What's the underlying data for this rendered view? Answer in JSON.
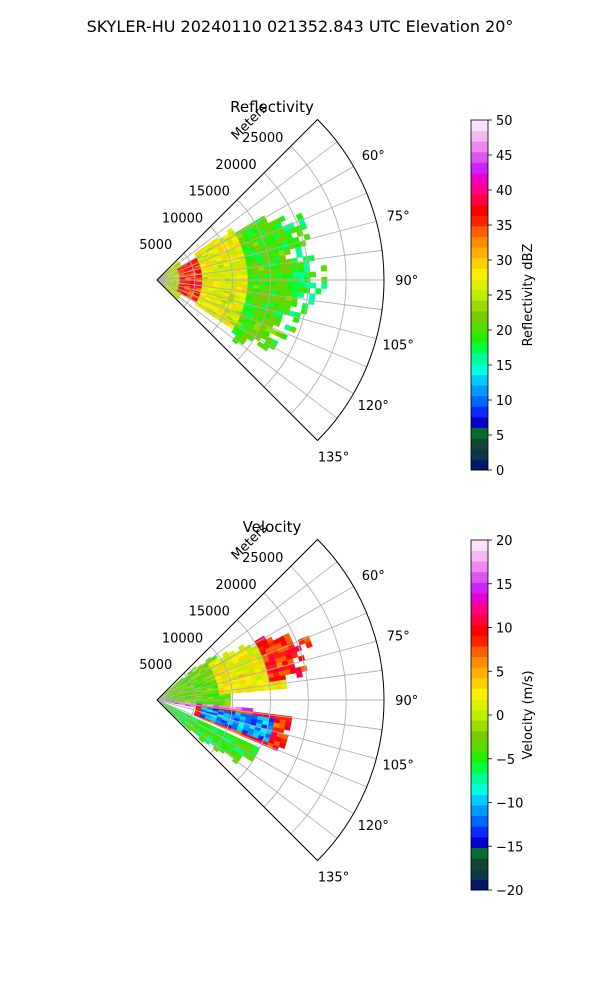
{
  "figure": {
    "suptitle": "SKYLER-HU  20240110  021352.843 UTC Elevation 20°"
  },
  "chart_data": [
    {
      "type": "heatmap",
      "subtype": "polar-sector radar PPI",
      "title": "Reflectivity",
      "radial_label": "Meters",
      "radial_ticks": [
        5000,
        10000,
        15000,
        20000,
        25000
      ],
      "radial_tick_labels": [
        "5000",
        "10000",
        "15000",
        "20000",
        "25000"
      ],
      "radial_range": [
        0,
        30000
      ],
      "angle_ticks": [
        60,
        75,
        90,
        105,
        120,
        135
      ],
      "angle_tick_labels": [
        "60°",
        "75°",
        "90°",
        "105°",
        "120°",
        "135°"
      ],
      "angle_range": [
        45,
        135
      ],
      "grid": true,
      "colorbar": {
        "label": "Reflectivity dBZ",
        "range": [
          0,
          50
        ],
        "ticks": [
          0,
          5,
          10,
          15,
          20,
          25,
          30,
          35,
          40,
          45,
          50
        ],
        "tick_labels": [
          "0",
          "5",
          "10",
          "15",
          "20",
          "25",
          "30",
          "35",
          "40",
          "45",
          "50"
        ],
        "palette": [
          "#001a66",
          "#0a3a4a",
          "#114433",
          "#0b6b2b",
          "#0000cc",
          "#0a2aff",
          "#0066ff",
          "#0099ff",
          "#00ccff",
          "#00ffdd",
          "#00ff99",
          "#00ff44",
          "#22ee00",
          "#55dd00",
          "#77cc00",
          "#99dd00",
          "#bbee00",
          "#ddee00",
          "#ffee00",
          "#ffd000",
          "#ffb000",
          "#ff8c00",
          "#ff6000",
          "#ff2000",
          "#ff0000",
          "#ff0044",
          "#ff0088",
          "#ee00cc",
          "#cc22ff",
          "#dd55ee",
          "#ee88ee",
          "#f5b8f5",
          "#fde0fd"
        ]
      },
      "echo_bands": [
        {
          "r": [
            0,
            4000
          ],
          "a": [
            47,
            133
          ],
          "value": 25
        },
        {
          "r": [
            3000,
            10000
          ],
          "a": [
            62,
            118
          ],
          "value": 36
        },
        {
          "r": [
            6000,
            14000
          ],
          "a": [
            55,
            122
          ],
          "value": 27
        },
        {
          "r": [
            12000,
            19000
          ],
          "a": [
            50,
            130
          ],
          "value": 20
        },
        {
          "r": [
            18000,
            25000
          ],
          "a": [
            55,
            125
          ],
          "value": 18
        }
      ],
      "echo_extent": [
        {
          "angle": 48,
          "range": 5000
        },
        {
          "angle": 55,
          "range": 11000
        },
        {
          "angle": 62,
          "range": 18000
        },
        {
          "angle": 68,
          "range": 21500
        },
        {
          "angle": 74,
          "range": 20500
        },
        {
          "angle": 80,
          "range": 19500
        },
        {
          "angle": 86,
          "range": 22000
        },
        {
          "angle": 92,
          "range": 22000
        },
        {
          "angle": 98,
          "range": 20500
        },
        {
          "angle": 104,
          "range": 19500
        },
        {
          "angle": 110,
          "range": 19000
        },
        {
          "angle": 116,
          "range": 18500
        },
        {
          "angle": 122,
          "range": 17000
        },
        {
          "angle": 128,
          "range": 13000
        },
        {
          "angle": 133,
          "range": 7000
        }
      ]
    },
    {
      "type": "heatmap",
      "subtype": "polar-sector radar PPI",
      "title": "Velocity",
      "radial_label": "Meters",
      "radial_ticks": [
        5000,
        10000,
        15000,
        20000,
        25000
      ],
      "radial_tick_labels": [
        "5000",
        "10000",
        "15000",
        "20000",
        "25000"
      ],
      "radial_range": [
        0,
        30000
      ],
      "angle_ticks": [
        60,
        75,
        90,
        105,
        120,
        135
      ],
      "angle_tick_labels": [
        "60°",
        "75°",
        "90°",
        "105°",
        "120°",
        "135°"
      ],
      "angle_range": [
        45,
        135
      ],
      "grid": true,
      "colorbar": {
        "label": "Velocity (m/s)",
        "range": [
          -20,
          20
        ],
        "ticks": [
          -20,
          -15,
          -10,
          -5,
          0,
          5,
          10,
          15,
          20
        ],
        "tick_labels": [
          "−20",
          "−15",
          "−10",
          "−5",
          "0",
          "5",
          "10",
          "15",
          "20"
        ],
        "palette": [
          "#001a66",
          "#0a3a4a",
          "#114433",
          "#0b6b2b",
          "#0000cc",
          "#0a2aff",
          "#0066ff",
          "#0099ff",
          "#00ccff",
          "#00ffdd",
          "#00ff99",
          "#00ff44",
          "#22ee00",
          "#55dd00",
          "#77cc00",
          "#99dd00",
          "#bbee00",
          "#ddee00",
          "#ffee00",
          "#ffd000",
          "#ffb000",
          "#ff8c00",
          "#ff6000",
          "#ff2000",
          "#ff0000",
          "#ff0044",
          "#ff0088",
          "#ee00cc",
          "#cc22ff",
          "#dd55ee",
          "#ee88ee",
          "#f5b8f5",
          "#fde0fd"
        ]
      },
      "echo_bands": [
        {
          "r": [
            0,
            10000
          ],
          "a": [
            50,
            95
          ],
          "value": -3
        },
        {
          "r": [
            8000,
            17000
          ],
          "a": [
            55,
            85
          ],
          "value": 2
        },
        {
          "r": [
            15000,
            22000
          ],
          "a": [
            58,
            80
          ],
          "value": 9
        },
        {
          "r": [
            0,
            13000
          ],
          "a": [
            95,
            100
          ],
          "value": 16
        },
        {
          "r": [
            5000,
            18000
          ],
          "a": [
            98,
            112
          ],
          "value": 9
        },
        {
          "r": [
            6000,
            16000
          ],
          "a": [
            100,
            110
          ],
          "value": -11
        },
        {
          "r": [
            0,
            15000
          ],
          "a": [
            115,
            133
          ],
          "value": -5
        }
      ],
      "echo_extent": [
        {
          "angle": 48,
          "range": 5000
        },
        {
          "angle": 55,
          "range": 11000
        },
        {
          "angle": 62,
          "range": 18000
        },
        {
          "angle": 68,
          "range": 21500
        },
        {
          "angle": 74,
          "range": 20500
        },
        {
          "angle": 80,
          "range": 19500
        },
        {
          "angle": 86,
          "range": 22000
        },
        {
          "angle": 92,
          "range": 22000
        },
        {
          "angle": 98,
          "range": 20500
        },
        {
          "angle": 104,
          "range": 19500
        },
        {
          "angle": 110,
          "range": 19000
        },
        {
          "angle": 116,
          "range": 18500
        },
        {
          "angle": 122,
          "range": 17000
        },
        {
          "angle": 128,
          "range": 13000
        },
        {
          "angle": 133,
          "range": 7000
        }
      ]
    }
  ]
}
